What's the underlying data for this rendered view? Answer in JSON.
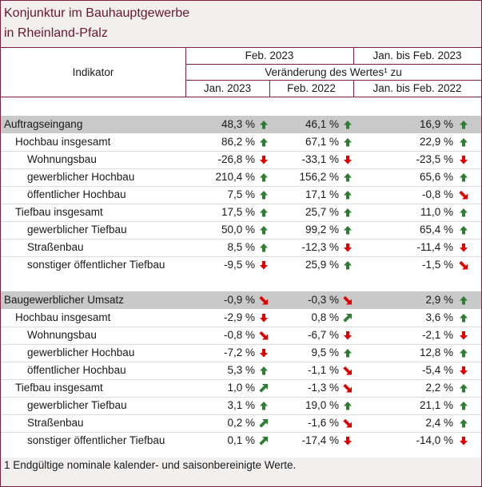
{
  "title": [
    "Konjunktur im Bauhauptgewerbe",
    "in Rheinland-Pfalz"
  ],
  "header": {
    "indicator": "Indikator",
    "period_feb": "Feb. 2023",
    "period_cum": "Jan. bis Feb. 2023",
    "change": "Veränderung des Wertes¹ zu",
    "col1": "Jan. 2023",
    "col2": "Feb. 2022",
    "col3": "Jan. bis Feb. 2022"
  },
  "colors": {
    "up": "#2e7d32",
    "down": "#e00000",
    "accent": "#7a1f3d"
  },
  "rows": [
    {
      "label": "Auftragseingang",
      "level": 0,
      "group": true,
      "values": [
        "48,3 %",
        "46,1 %",
        "16,9 %"
      ],
      "arrows": [
        "up",
        "up",
        "up"
      ]
    },
    {
      "label": "Hochbau insgesamt",
      "level": 1,
      "values": [
        "86,2 %",
        "67,1 %",
        "22,9 %"
      ],
      "arrows": [
        "up",
        "up",
        "up"
      ]
    },
    {
      "label": "Wohnungsbau",
      "level": 2,
      "values": [
        "-26,8 %",
        "-33,1 %",
        "-23,5 %"
      ],
      "arrows": [
        "down",
        "down",
        "down"
      ]
    },
    {
      "label": "gewerblicher Hochbau",
      "level": 2,
      "values": [
        "210,4 %",
        "156,2 %",
        "65,6 %"
      ],
      "arrows": [
        "up",
        "up",
        "up"
      ]
    },
    {
      "label": "öffentlicher Hochbau",
      "level": 2,
      "values": [
        "7,5 %",
        "17,1 %",
        "-0,8 %"
      ],
      "arrows": [
        "up",
        "up",
        "down-right"
      ]
    },
    {
      "label": "Tiefbau insgesamt",
      "level": 1,
      "values": [
        "17,5 %",
        "25,7 %",
        "11,0 %"
      ],
      "arrows": [
        "up",
        "up",
        "up"
      ]
    },
    {
      "label": "gewerblicher Tiefbau",
      "level": 2,
      "values": [
        "50,0 %",
        "99,2 %",
        "65,4 %"
      ],
      "arrows": [
        "up",
        "up",
        "up"
      ]
    },
    {
      "label": "Straßenbau",
      "level": 2,
      "values": [
        "8,5 %",
        "-12,3 %",
        "-11,4 %"
      ],
      "arrows": [
        "up",
        "down",
        "down"
      ]
    },
    {
      "label": "sonstiger öffentlicher Tiefbau",
      "level": 2,
      "values": [
        "-9,5 %",
        "25,9 %",
        "-1,5 %"
      ],
      "arrows": [
        "down",
        "up",
        "down-right"
      ]
    },
    {
      "label": "Baugewerblicher Umsatz",
      "level": 0,
      "group": true,
      "values": [
        "-0,9 %",
        "-0,3 %",
        "2,9 %"
      ],
      "arrows": [
        "down-right",
        "down-right",
        "up"
      ]
    },
    {
      "label": "Hochbau insgesamt",
      "level": 1,
      "values": [
        "-2,9 %",
        "0,8 %",
        "3,6 %"
      ],
      "arrows": [
        "down",
        "up-right",
        "up"
      ]
    },
    {
      "label": "Wohnungsbau",
      "level": 2,
      "values": [
        "-0,8 %",
        "-6,7 %",
        "-2,1 %"
      ],
      "arrows": [
        "down-right",
        "down",
        "down"
      ]
    },
    {
      "label": "gewerblicher Hochbau",
      "level": 2,
      "values": [
        "-7,2 %",
        "9,5 %",
        "12,8 %"
      ],
      "arrows": [
        "down",
        "up",
        "up"
      ]
    },
    {
      "label": "öffentlicher Hochbau",
      "level": 2,
      "values": [
        "5,3 %",
        "-1,1 %",
        "-5,4 %"
      ],
      "arrows": [
        "up",
        "down-right",
        "down"
      ]
    },
    {
      "label": "Tiefbau insgesamt",
      "level": 1,
      "values": [
        "1,0 %",
        "-1,3 %",
        "2,2 %"
      ],
      "arrows": [
        "up-right",
        "down-right",
        "up"
      ]
    },
    {
      "label": "gewerblicher Tiefbau",
      "level": 2,
      "values": [
        "3,1 %",
        "19,0 %",
        "21,1 %"
      ],
      "arrows": [
        "up",
        "up",
        "up"
      ]
    },
    {
      "label": "Straßenbau",
      "level": 2,
      "values": [
        "0,2 %",
        "-1,6 %",
        "2,4 %"
      ],
      "arrows": [
        "up-right",
        "down-right",
        "up"
      ]
    },
    {
      "label": "sonstiger öffentlicher Tiefbau",
      "level": 2,
      "values": [
        "0,1 %",
        "-17,4 %",
        "-14,0 %"
      ],
      "arrows": [
        "up-right",
        "down",
        "down"
      ]
    }
  ],
  "footnote": "1 Endgültige nominale kalender- und saisonbereinigte Werte."
}
